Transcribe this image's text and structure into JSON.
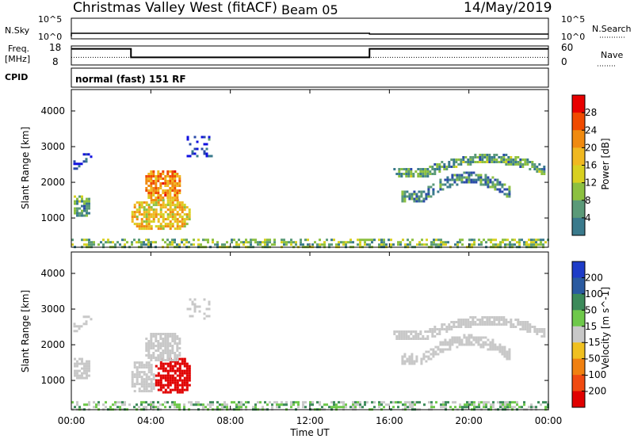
{
  "header": {
    "station": "Christmas Valley West (fitACF)",
    "beam": "Beam 05",
    "date": "14/May/2019"
  },
  "top_panels": {
    "nsky_label": "N.Sky",
    "nsky_ticks": [
      "10^5",
      "10^0"
    ],
    "nsearch_label": "N.Search",
    "right_ticks_top": [
      "10^5",
      "10^0"
    ],
    "freq_label_1": "Freq.",
    "freq_label_2": "[MHz]",
    "freq_ticks": [
      "18",
      "8"
    ],
    "nave_label": "Nave",
    "nave_ticks": [
      "60",
      "0"
    ],
    "cpid_label": "CPID",
    "cpid_text": "normal (fast) 151 RF"
  },
  "axis": {
    "xlabel": "Time UT",
    "xticks": [
      "00:00",
      "04:00",
      "08:00",
      "12:00",
      "16:00",
      "20:00",
      "00:00"
    ],
    "ylabel": "Slant Range [km]",
    "yticks": [
      "4000",
      "3000",
      "2000",
      "1000"
    ]
  },
  "colorbars": {
    "power": {
      "label": "Power [dB]",
      "ticks": [
        "28",
        "24",
        "20",
        "16",
        "12",
        "8",
        "4"
      ],
      "colors": [
        "#e80000",
        "#f04a00",
        "#f08a10",
        "#f0b820",
        "#d8d020",
        "#8cc040",
        "#5a9a78",
        "#3a7a8c",
        "#2a4aa8",
        "#1010e0"
      ]
    },
    "velocity": {
      "label": "Velocity [m s^-1]",
      "ticks": [
        "200",
        "100",
        "50",
        "15",
        "-15",
        "-50",
        "-100",
        "-200"
      ],
      "colors": [
        "#1e3cc8",
        "#2a5aa0",
        "#3c8a5a",
        "#6ec84a",
        "#c8c8c8",
        "#f0c020",
        "#f08010",
        "#f04a10",
        "#e00000"
      ]
    }
  },
  "chart_data": [
    {
      "type": "line",
      "title": "N.Sky / N.Search",
      "x": [
        "00:00",
        "06:00",
        "15:00",
        "18:36",
        "24:00"
      ],
      "series": [
        {
          "name": "N.Sky",
          "values": [
            1,
            1,
            1,
            1,
            1
          ],
          "scale": "log"
        }
      ],
      "ylim": [
        1,
        100000
      ]
    },
    {
      "type": "line",
      "title": "Freq / Nave",
      "x_hours": [
        0,
        3,
        3,
        15,
        15,
        24
      ],
      "series": [
        {
          "name": "Freq. [MHz]",
          "values": [
            16.5,
            16.5,
            12,
            12,
            16.5,
            16.5
          ]
        },
        {
          "name": "Nave",
          "values": [
            24,
            24,
            24,
            24,
            24,
            24
          ],
          "style": "dotted"
        }
      ],
      "freq_ylim": [
        8,
        18
      ],
      "nave_ylim": [
        0,
        60
      ]
    },
    {
      "type": "heatmap",
      "title": "Power [dB]",
      "xlim_hours": [
        0,
        24
      ],
      "ylim_km": [
        180,
        4600
      ],
      "regions": [
        {
          "t0": 0.1,
          "t1": 1.0,
          "r0": 2400,
          "r1": 2950,
          "level": 6,
          "pattern": "band"
        },
        {
          "t0": 0.0,
          "t1": 0.9,
          "r0": 1050,
          "r1": 1700,
          "level": 12,
          "pattern": "blob"
        },
        {
          "t0": 2.9,
          "t1": 5.9,
          "r0": 650,
          "r1": 1600,
          "level": 20,
          "pattern": "blob"
        },
        {
          "t0": 3.6,
          "t1": 5.5,
          "r0": 1500,
          "r1": 2400,
          "level": 24,
          "pattern": "blob"
        },
        {
          "t0": 5.8,
          "t1": 7.0,
          "r0": 2750,
          "r1": 3300,
          "level": 6,
          "pattern": "sparse"
        },
        {
          "t0": 16.2,
          "t1": 23.8,
          "r0": 2150,
          "r1": 3000,
          "level": 12,
          "pattern": "arc"
        },
        {
          "t0": 16.6,
          "t1": 22.0,
          "r0": 1500,
          "r1": 2500,
          "level": 10,
          "pattern": "arc"
        },
        {
          "t0": 0.0,
          "t1": 24.0,
          "r0": 200,
          "r1": 420,
          "level": 14,
          "pattern": "ground"
        }
      ]
    },
    {
      "type": "heatmap",
      "title": "Velocity [m s^-1]",
      "xlim_hours": [
        0,
        24
      ],
      "ylim_km": [
        180,
        4600
      ],
      "regions": [
        {
          "t0": 0.1,
          "t1": 1.0,
          "r0": 2400,
          "r1": 2950,
          "velocity": 0,
          "pattern": "band"
        },
        {
          "t0": 0.0,
          "t1": 0.9,
          "r0": 1050,
          "r1": 1700,
          "velocity": 0,
          "pattern": "blob"
        },
        {
          "t0": 2.9,
          "t1": 4.2,
          "r0": 650,
          "r1": 1600,
          "velocity": 0,
          "pattern": "blob"
        },
        {
          "t0": 4.1,
          "t1": 6.0,
          "r0": 650,
          "r1": 1700,
          "velocity": -220,
          "pattern": "blob"
        },
        {
          "t0": 3.6,
          "t1": 5.5,
          "r0": 1500,
          "r1": 2400,
          "velocity": 0,
          "pattern": "blob"
        },
        {
          "t0": 5.8,
          "t1": 7.0,
          "r0": 2750,
          "r1": 3300,
          "velocity": 0,
          "pattern": "sparse"
        },
        {
          "t0": 16.2,
          "t1": 23.8,
          "r0": 2150,
          "r1": 3000,
          "velocity": 0,
          "pattern": "arc"
        },
        {
          "t0": 16.6,
          "t1": 22.0,
          "r0": 1500,
          "r1": 2500,
          "velocity": 0,
          "pattern": "arc"
        },
        {
          "t0": 0.0,
          "t1": 24.0,
          "r0": 200,
          "r1": 420,
          "velocity": 20,
          "pattern": "ground"
        }
      ]
    }
  ]
}
